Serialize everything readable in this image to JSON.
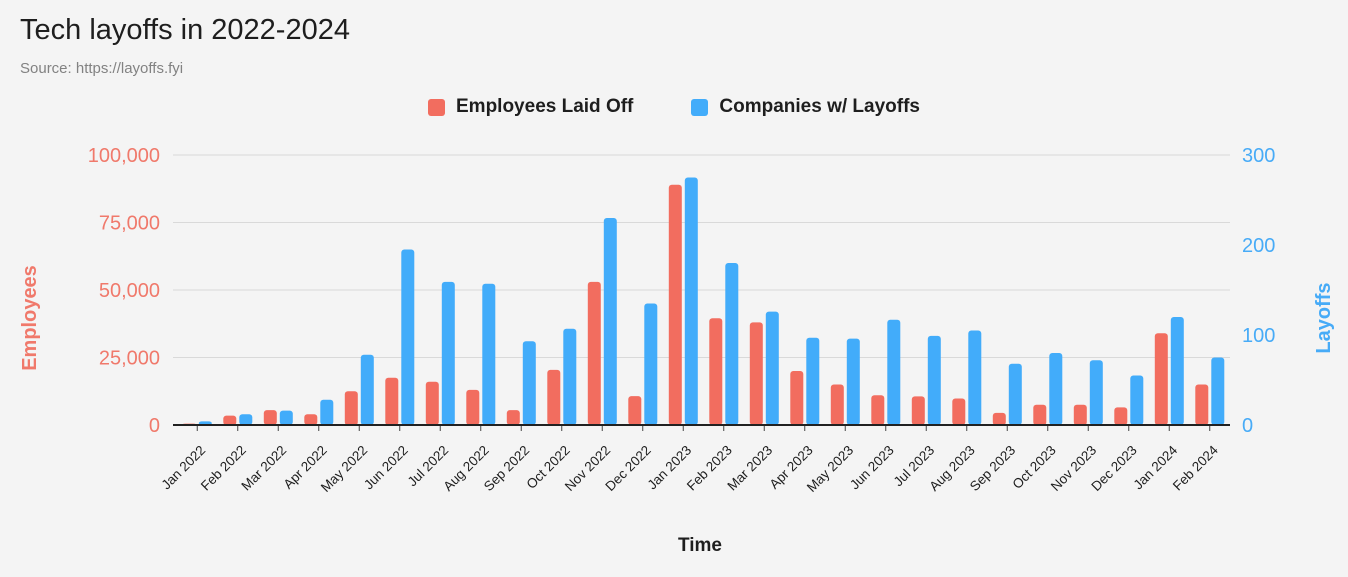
{
  "header": {
    "title": "Tech layoffs in 2022-2024",
    "source": "Source: https://layoffs.fyi"
  },
  "legend": {
    "items": [
      {
        "label": "Employees Laid Off",
        "color": "#f26d5f"
      },
      {
        "label": "Companies w/ Layoffs",
        "color": "#42acfa"
      }
    ]
  },
  "axes": {
    "left": {
      "title": "Employees",
      "ticks": [
        "100,000",
        "75,000",
        "50,000",
        "25,000",
        "0"
      ],
      "color": "#f0796b"
    },
    "right": {
      "title": "Layoffs",
      "ticks": [
        "300",
        "200",
        "100",
        "0"
      ],
      "color": "#47abf7"
    },
    "x": {
      "title": "Time",
      "color": "#1e1e1e"
    }
  },
  "chart_data": {
    "type": "bar",
    "title": "Tech layoffs in 2022-2024",
    "xlabel": "Time",
    "ylabel_left": "Employees",
    "ylabel_right": "Layoffs",
    "ylim_left": [
      0,
      100000
    ],
    "ylim_right": [
      0,
      300
    ],
    "grid": true,
    "legend_position": "top",
    "categories": [
      "Jan 2022",
      "Feb 2022",
      "Mar 2022",
      "Apr 2022",
      "May 2022",
      "Jun 2022",
      "Jul 2022",
      "Aug 2022",
      "Sep 2022",
      "Oct 2022",
      "Nov 2022",
      "Dec 2022",
      "Jan 2023",
      "Feb 2023",
      "Mar 2023",
      "Apr 2023",
      "May 2023",
      "Jun 2023",
      "Jul 2023",
      "Aug 2023",
      "Sep 2023",
      "Oct 2023",
      "Nov 2023",
      "Dec 2023",
      "Jan 2024",
      "Feb 2024"
    ],
    "series": [
      {
        "name": "Employees Laid Off",
        "axis": "left",
        "color": "#f26d5f",
        "values": [
          500,
          3500,
          5500,
          4000,
          12500,
          17500,
          16000,
          13000,
          5500,
          20400,
          53000,
          10700,
          89000,
          39500,
          38000,
          20000,
          15000,
          11000,
          10600,
          9800,
          4500,
          7500,
          7500,
          6500,
          34000,
          15000
        ]
      },
      {
        "name": "Companies w/ Layoffs",
        "axis": "right",
        "color": "#42acfa",
        "values": [
          4,
          12,
          16,
          28,
          78,
          195,
          159,
          157,
          93,
          107,
          230,
          135,
          275,
          180,
          126,
          97,
          96,
          117,
          99,
          105,
          68,
          80,
          72,
          55,
          120,
          75
        ]
      }
    ]
  },
  "style_colors": {
    "background": "#f4f4f4",
    "gridline": "#d9d9d9",
    "baseline": "#212121",
    "x_label": "#1e1e1e"
  }
}
